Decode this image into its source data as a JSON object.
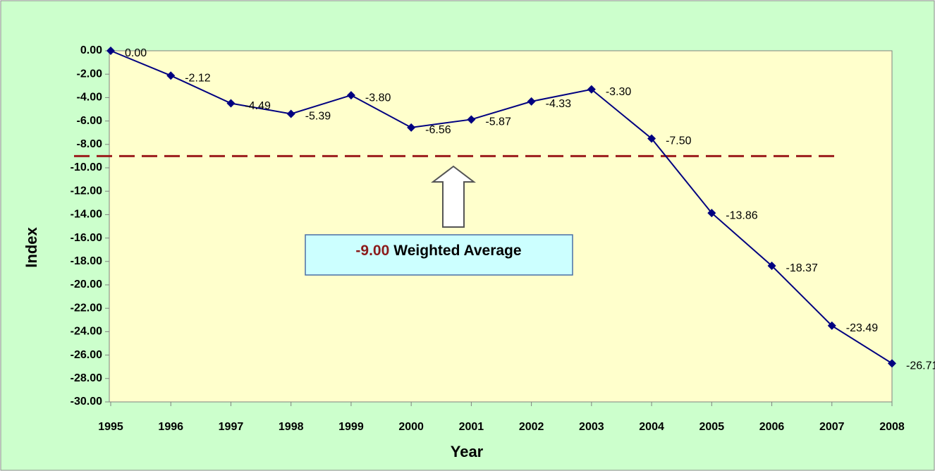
{
  "chart_data": {
    "type": "line",
    "x_label": "Year",
    "y_label": "Index",
    "categories": [
      "1995",
      "1996",
      "1997",
      "1998",
      "1999",
      "2000",
      "2001",
      "2002",
      "2003",
      "2004",
      "2005",
      "2006",
      "2007",
      "2008"
    ],
    "series": [
      {
        "name": "Index",
        "color": "#000080",
        "values": [
          0,
          -2.12,
          -4.49,
          -5.39,
          -3.8,
          -6.56,
          -5.87,
          -4.33,
          -3.3,
          -7.5,
          -13.86,
          -18.37,
          -23.49,
          -26.71
        ],
        "value_labels": [
          "0.00",
          "-2.12",
          "-4.49",
          "-5.39",
          "-3.80",
          "-6.56",
          "-5.87",
          "-4.33",
          "-3.30",
          "-7.50",
          "-13.86",
          "-18.37",
          "-23.49",
          "-26.71"
        ]
      }
    ],
    "ylim": [
      -30,
      0
    ],
    "yticks": [
      {
        "value": 0,
        "label": "0.00"
      },
      {
        "value": -2,
        "label": "-2.00"
      },
      {
        "value": -4,
        "label": "-4.00"
      },
      {
        "value": -6,
        "label": "-6.00"
      },
      {
        "value": -8,
        "label": "-8.00"
      },
      {
        "value": -10,
        "label": "-10.00"
      },
      {
        "value": -12,
        "label": "-12.00"
      },
      {
        "value": -14,
        "label": "-14.00"
      },
      {
        "value": -16,
        "label": "-16.00"
      },
      {
        "value": -18,
        "label": "-18.00"
      },
      {
        "value": -20,
        "label": "-20.00"
      },
      {
        "value": -22,
        "label": "-22.00"
      },
      {
        "value": -24,
        "label": "-24.00"
      },
      {
        "value": -26,
        "label": "-26.00"
      },
      {
        "value": -28,
        "label": "-28.00"
      },
      {
        "value": -30,
        "label": "-30.00"
      }
    ],
    "grid": false,
    "annotation": {
      "value": -9,
      "label": "-9.00",
      "text": "Weighted Average",
      "color": "#8b1a1a"
    }
  }
}
